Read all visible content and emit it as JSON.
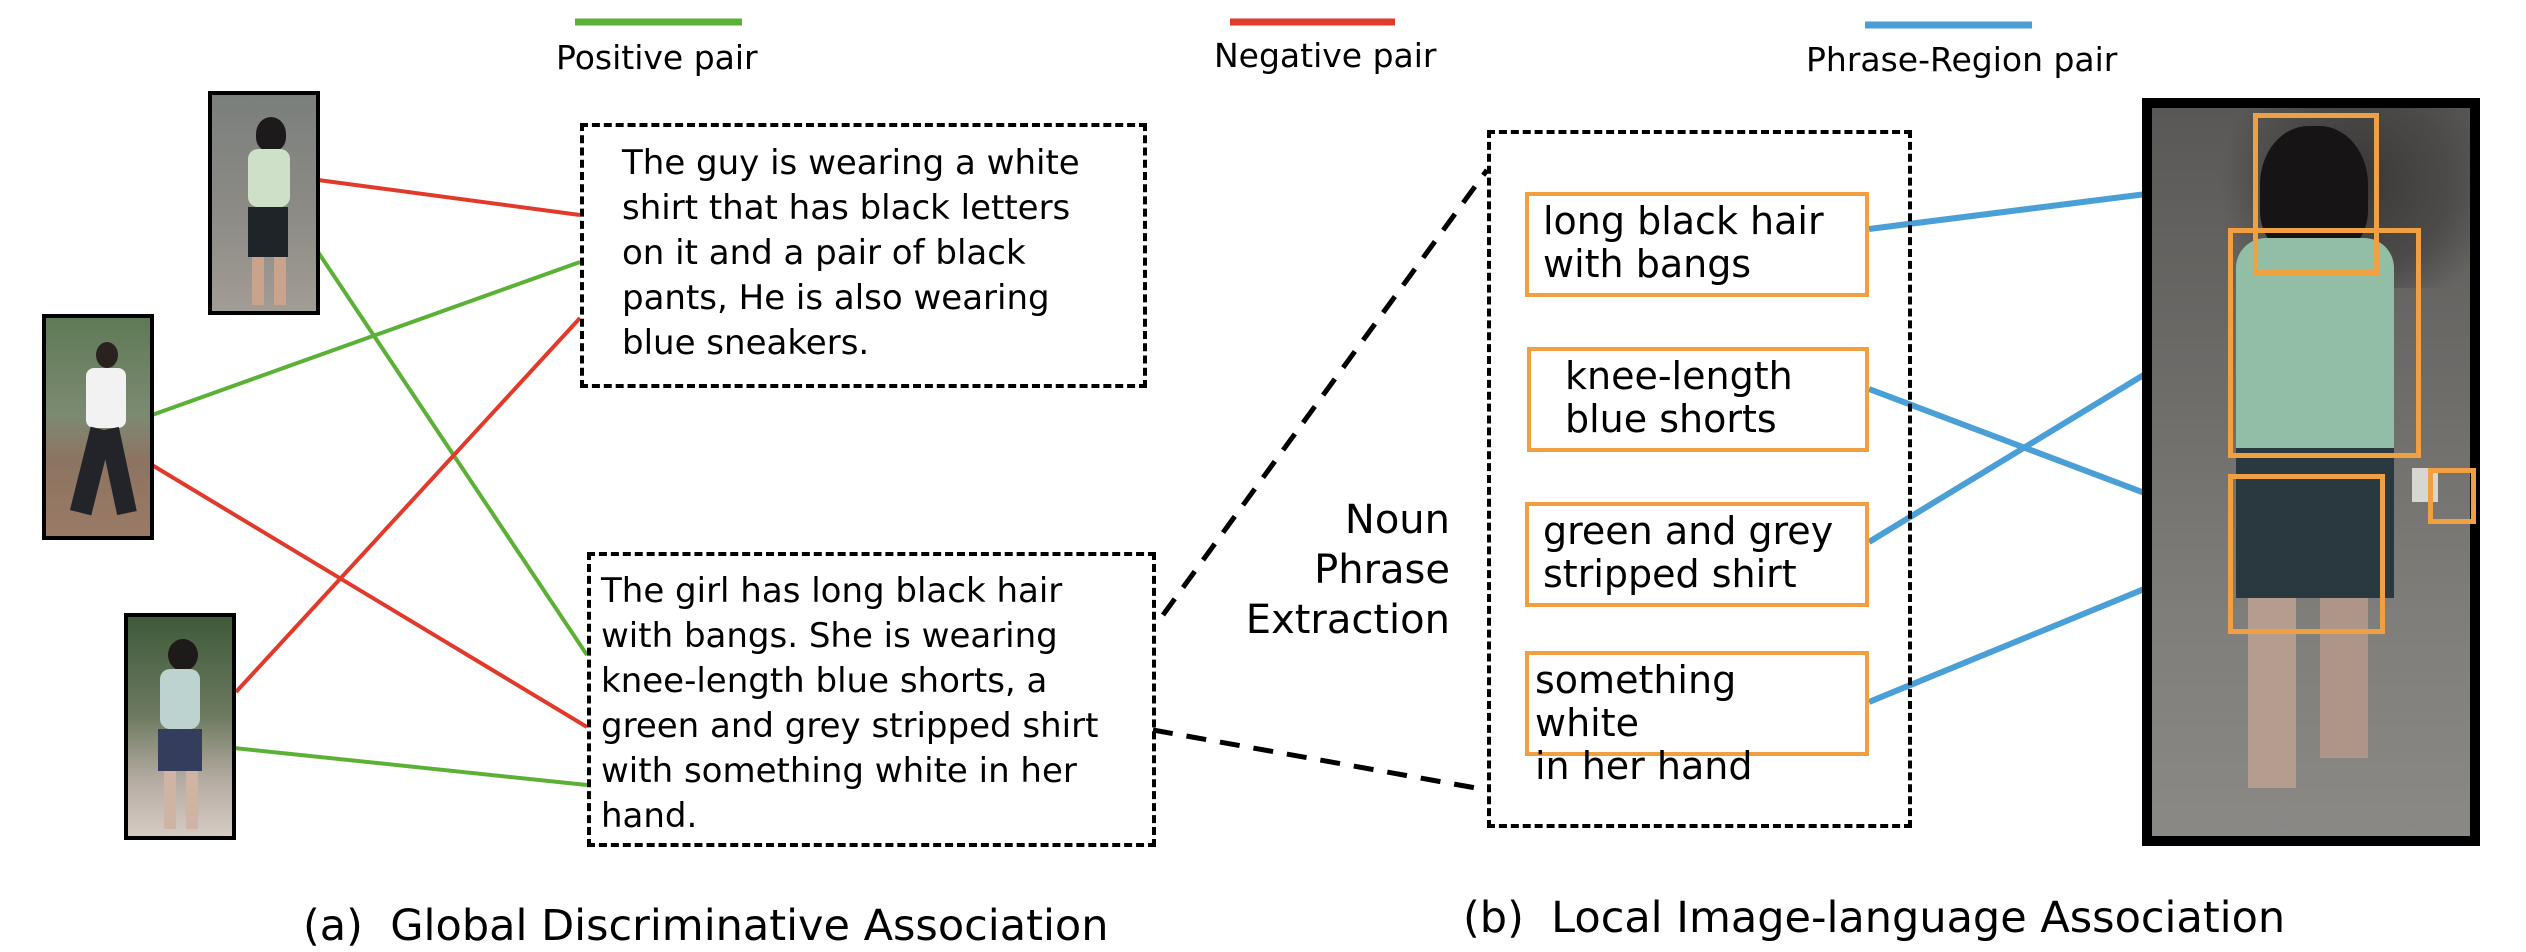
{
  "legend": {
    "positive": "Positive pair",
    "negative": "Negative pair",
    "phrase_region": "Phrase-Region pair"
  },
  "colors": {
    "positive": "#5bb135",
    "negative": "#e23a2a",
    "phrase_region": "#4a9fd6",
    "region_box": "#f0a040"
  },
  "captions": {
    "top": "The guy is wearing a white\nshirt that has black letters\non it and a pair of black\npants, He is also wearing\nblue sneakers.",
    "bottom": "The girl has long black hair\n with bangs. She is wearing\n knee-length blue shorts, a\ngreen and grey stripped shirt\n with something white in her\n hand."
  },
  "extraction_label": "Noun\nPhrase\nExtraction",
  "phrases": [
    "long black hair\nwith bangs",
    "knee-length\nblue shorts",
    "green and grey\nstripped shirt",
    "something white\nin her hand"
  ],
  "subcaptions": {
    "a": "(a)  Global Discriminative Association",
    "b": "(b)  Local Image-language Association"
  }
}
